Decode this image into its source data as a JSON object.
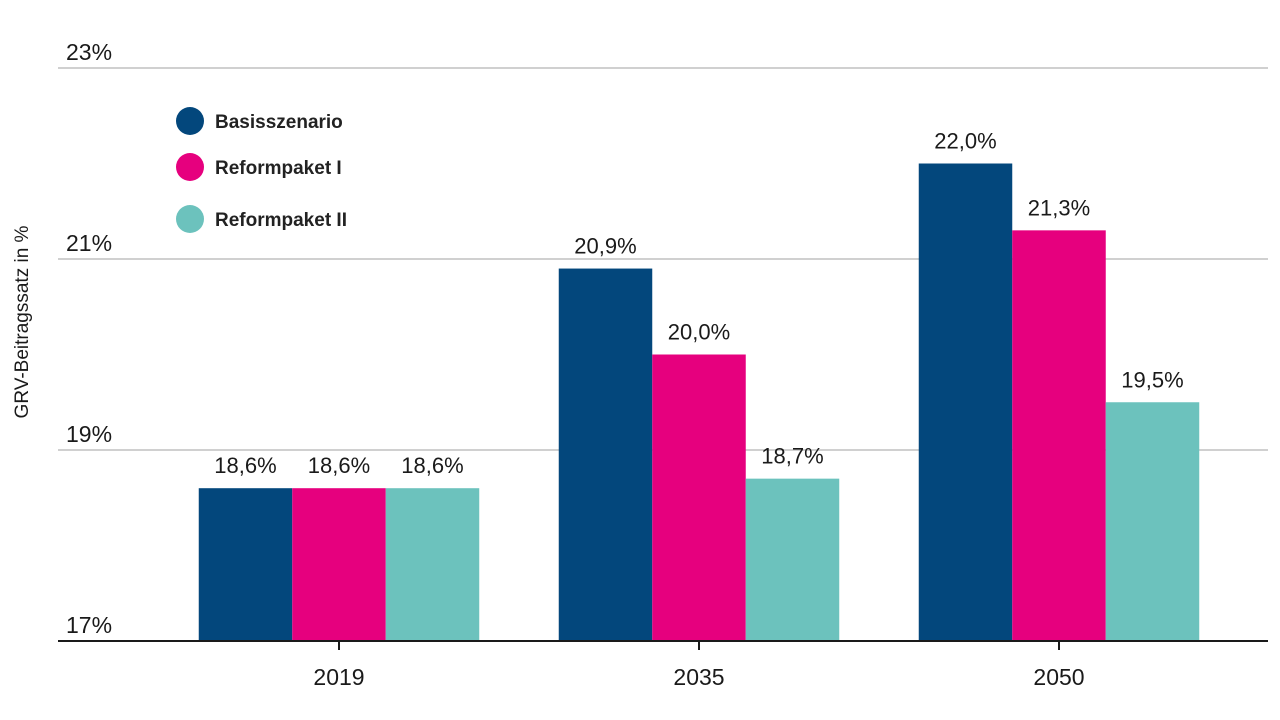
{
  "chart_data": {
    "type": "bar",
    "title": "",
    "xlabel": "",
    "ylabel": "GRV-Beitragssatz in %",
    "ylim": [
      17,
      23
    ],
    "yticks": [
      17,
      19,
      21,
      23
    ],
    "ytick_labels": [
      "17%",
      "19%",
      "21%",
      "23%"
    ],
    "grid": true,
    "legend_position": "top-left",
    "categories": [
      "2019",
      "2035",
      "2050"
    ],
    "series": [
      {
        "name": "Basisszenario",
        "color": "#03477c",
        "values": [
          18.6,
          20.9,
          22.0
        ],
        "labels": [
          "18,6%",
          "20,9%",
          "22,0%"
        ]
      },
      {
        "name": "Reformpaket I",
        "color": "#e6007e",
        "values": [
          18.6,
          20.0,
          21.3
        ],
        "labels": [
          "18,6%",
          "20,0%",
          "21,3%"
        ]
      },
      {
        "name": "Reformpaket II",
        "color": "#6cc2bd",
        "values": [
          18.6,
          18.7,
          19.5
        ],
        "labels": [
          "18,6%",
          "18,7%",
          "19,5%"
        ]
      }
    ]
  }
}
